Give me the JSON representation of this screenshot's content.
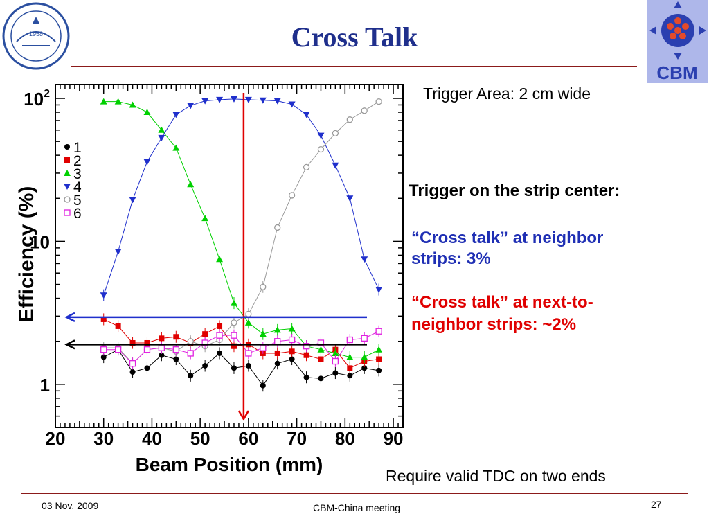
{
  "slide": {
    "title": "Cross Talk",
    "notes": {
      "trigger_area": "Trigger Area: 2 cm wide",
      "trigger_center": "Trigger on the strip center:",
      "neighbor": "“Cross talk” at neighbor strips: 3%",
      "neighbor_line1": "“Cross talk” at neighbor",
      "neighbor_line2": "strips: 3%",
      "next_neighbor": "“Cross talk” at next-to-neighbor strips: ~2%",
      "next_neighbor_line1": "“Cross talk” at next-to-",
      "next_neighbor_line2": "neighbor strips: ~2%",
      "require": "Require valid TDC on two ends"
    },
    "footer": {
      "date": "03 Nov. 2009",
      "meeting": "CBM-China meeting",
      "page": "27"
    },
    "logos": {
      "left_year": "1958",
      "right_label": "CBM"
    },
    "colors": {
      "title": "#1f2f8c",
      "neighbor_text": "#1f2fb4",
      "next_neighbor_text": "#e00000",
      "rule": "#8b1a1a"
    }
  },
  "chart_data": {
    "type": "scatter",
    "xlabel": "Beam Position (mm)",
    "ylabel": "Efficiency (%)",
    "xlim": [
      20,
      92
    ],
    "ylim": [
      0.5,
      125
    ],
    "y_scale": "log",
    "x_ticks": [
      "20",
      "30",
      "40",
      "50",
      "60",
      "70",
      "80",
      "90"
    ],
    "y_ticks": [
      {
        "value": 100,
        "label": "10^2"
      },
      {
        "value": 10,
        "label": "10"
      },
      {
        "value": 1,
        "label": "1"
      }
    ],
    "legend_position": "left",
    "x": [
      30,
      33,
      36,
      39,
      42,
      45,
      48,
      51,
      54,
      57,
      60,
      63,
      66,
      69,
      72,
      75,
      78,
      81,
      84,
      87
    ],
    "series": [
      {
        "name": "1",
        "color": "#000000",
        "marker": "circle",
        "values": [
          1.55,
          1.75,
          1.22,
          1.3,
          1.6,
          1.5,
          1.15,
          1.35,
          1.65,
          1.3,
          1.35,
          0.98,
          1.4,
          1.5,
          1.12,
          1.1,
          1.2,
          1.15,
          1.3,
          1.25
        ]
      },
      {
        "name": "2",
        "color": "#e00000",
        "marker": "square",
        "values": [
          2.85,
          2.55,
          1.95,
          1.95,
          2.1,
          2.15,
          1.95,
          2.25,
          2.55,
          1.85,
          1.9,
          1.65,
          1.65,
          1.7,
          1.6,
          1.5,
          1.75,
          1.3,
          1.45,
          1.5
        ]
      },
      {
        "name": "3",
        "color": "#00d000",
        "marker": "triangle-up",
        "values": [
          95,
          95,
          90,
          80,
          60,
          45,
          25,
          14.5,
          7.5,
          3.7,
          2.7,
          2.25,
          2.4,
          2.45,
          1.85,
          1.75,
          1.65,
          1.55,
          1.55,
          1.75
        ]
      },
      {
        "name": "4",
        "color": "#1f2fcc",
        "marker": "triangle-down",
        "values": [
          4.2,
          8.5,
          19.5,
          36,
          53,
          77,
          89,
          96,
          98,
          99,
          98,
          97,
          96,
          91,
          77,
          55,
          34,
          20,
          7.5,
          4.6
        ]
      },
      {
        "name": "5",
        "color": "#999999",
        "marker": "open-circle",
        "values": [
          1.8,
          1.8,
          1.4,
          1.75,
          1.8,
          1.7,
          2.0,
          1.85,
          2.05,
          2.7,
          3.1,
          4.8,
          12.5,
          21,
          33,
          44,
          57,
          71,
          82,
          95
        ]
      },
      {
        "name": "6",
        "color": "#e020e0",
        "marker": "open-square",
        "values": [
          1.75,
          1.75,
          1.4,
          1.75,
          1.8,
          1.75,
          1.65,
          1.95,
          2.2,
          2.2,
          1.65,
          1.8,
          2.0,
          2.05,
          1.85,
          1.95,
          1.45,
          2.05,
          2.1,
          2.35
        ]
      }
    ],
    "annotations": [
      {
        "type": "vertical-arrow",
        "x": 59,
        "color": "#e00000"
      },
      {
        "type": "horizontal-arrow",
        "y": 2.95,
        "color": "#1f2fcc"
      },
      {
        "type": "horizontal-arrow",
        "y": 1.9,
        "color": "#000000"
      }
    ]
  }
}
